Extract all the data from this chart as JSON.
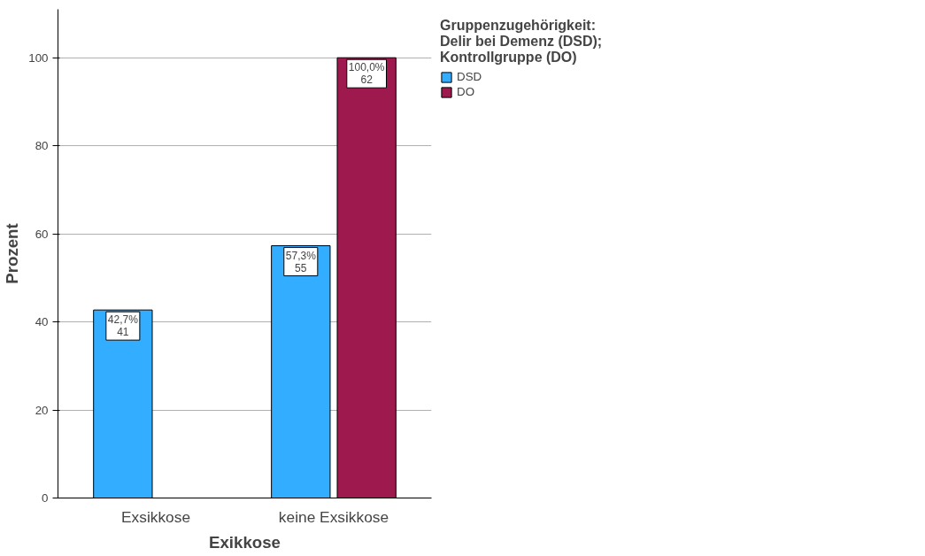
{
  "chart_data": {
    "type": "bar",
    "xlabel": "Exikkose",
    "ylabel": "Prozent",
    "legend_title": "Gruppenzugehörigkeit: Delir bei Demenz (DSD); Kontrollgruppe (DO)",
    "categories": [
      "Exsikkose",
      "keine Exsikkose"
    ],
    "series": [
      {
        "name": "DSD",
        "color": "#33adff",
        "values": [
          42.7,
          57.3
        ],
        "value_labels": [
          "42,7%\n41",
          "57,3%\n55"
        ]
      },
      {
        "name": "DO",
        "color": "#9e1a4e",
        "values": [
          null,
          100
        ],
        "value_labels": [
          null,
          "100,0%\n62"
        ]
      }
    ],
    "ylim": [
      0,
      111
    ],
    "yticks": [
      0,
      20,
      40,
      60,
      80,
      100
    ],
    "grid": "y",
    "legend": "top right"
  }
}
